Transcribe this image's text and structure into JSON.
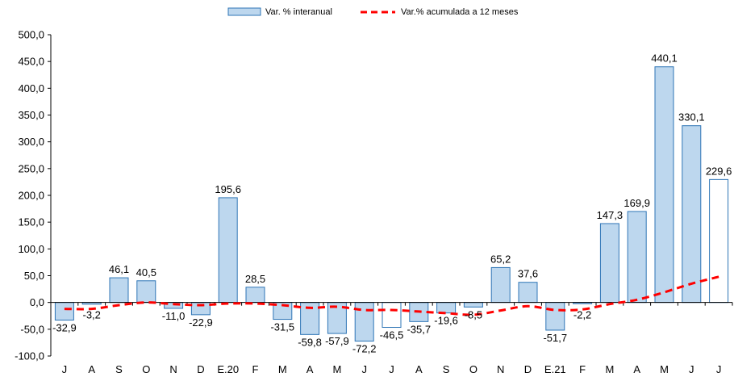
{
  "chart_data": {
    "type": "bar",
    "categories": [
      "J",
      "A",
      "S",
      "O",
      "N",
      "D",
      "E.20",
      "F",
      "M",
      "A",
      "M",
      "J",
      "J",
      "A",
      "S",
      "O",
      "N",
      "D",
      "E.21",
      "F",
      "M",
      "A",
      "M",
      "J",
      "J"
    ],
    "series": [
      {
        "name": "Var. % interanual",
        "type": "bar",
        "color": "#bdd7ee",
        "border": "#2e75b6",
        "values": [
          -32.9,
          -3.2,
          46.1,
          40.5,
          -11.0,
          -22.9,
          195.6,
          28.5,
          -31.5,
          -59.8,
          -57.9,
          -72.2,
          -46.5,
          -35.7,
          -19.6,
          -8.5,
          65.2,
          37.6,
          -51.7,
          -2.2,
          147.3,
          169.9,
          440.1,
          330.1,
          229.6
        ],
        "labels": [
          "-32,9",
          "-3,2",
          "46,1",
          "40,5",
          "-11,0",
          "-22,9",
          "195,6",
          "28,5",
          "-31,5",
          "-59,8",
          "-57,9",
          "-72,2",
          "-46,5",
          "-35,7",
          "-19,6",
          "-8,5",
          "65,2",
          "37,6",
          "-51,7",
          "-2,2",
          "147,3",
          "169,9",
          "440,1",
          "330,1",
          "229,6"
        ],
        "unfilled_indices": [
          12,
          24
        ]
      },
      {
        "name": "Var.% acumulada a 12 meses",
        "type": "line",
        "style": "dashed",
        "color": "#ff0000",
        "values": [
          -12,
          -12,
          -5,
          0,
          -3,
          -5,
          -2,
          -2,
          -5,
          -10,
          -8,
          -14,
          -14,
          -17,
          -20,
          -23,
          -15,
          -7,
          -14,
          -13,
          -3,
          5,
          19,
          35,
          48
        ]
      }
    ],
    "y_ticks": [
      "500,0",
      "450,0",
      "400,0",
      "350,0",
      "300,0",
      "250,0",
      "200,0",
      "150,0",
      "100,0",
      "50,0",
      "0,0",
      "-50,0",
      "-100,0"
    ],
    "ylim": [
      -100,
      500
    ],
    "grid": false,
    "legend": {
      "position": "top-center",
      "entries": [
        "Var. % interanual",
        "Var.% acumulada a 12 meses"
      ]
    }
  }
}
